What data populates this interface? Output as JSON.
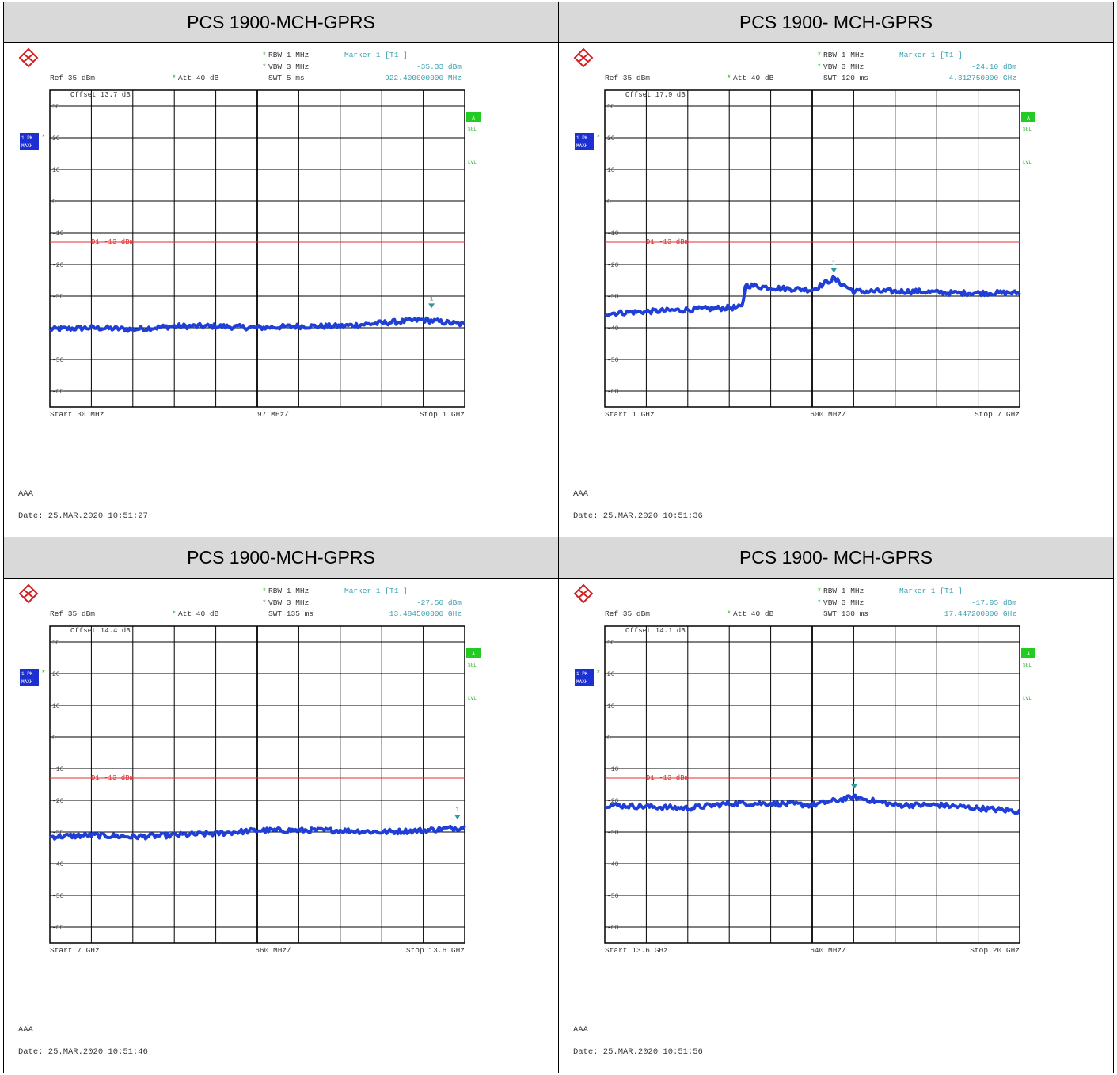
{
  "panels": [
    {
      "header": "PCS 1900-MCH-GPRS",
      "ref_label": "Ref  35 dBm",
      "att_label": "Att  40 dB",
      "rbw": "RBW 1 MHz",
      "vbw": "VBW 3 MHz",
      "swt": "SWT 5 ms",
      "marker_title": "Marker 1 [T1 ]",
      "marker_level": "-35.33 dBm",
      "marker_freq": "922.400000000 MHz",
      "offset": "Offset  13.7 dB",
      "d1_label": "D1  -13  dBm",
      "start_label": "Start 30 MHz",
      "span_label": "97 MHz/",
      "stop_label": "Stop 1 GHz",
      "comment": "AAA",
      "date": "Date: 25.MAR.2020  10:51:27",
      "trace_badge": [
        "1 PK",
        "MAXH"
      ],
      "side_badges": [
        "A",
        "SGL",
        "LVL"
      ],
      "star_marks": [
        "*",
        "*",
        "*",
        "*"
      ]
    },
    {
      "header": "PCS 1900- MCH-GPRS",
      "ref_label": "Ref  35 dBm",
      "att_label": "Att  40 dB",
      "rbw": "RBW 1 MHz",
      "vbw": "VBW 3 MHz",
      "swt": "SWT 120 ms",
      "marker_title": "Marker 1 [T1 ]",
      "marker_level": "-24.10 dBm",
      "marker_freq": "4.312750000 GHz",
      "offset": "Offset  17.9 dB",
      "d1_label": "D1  -13  dBm",
      "start_label": "Start 1 GHz",
      "span_label": "600 MHz/",
      "stop_label": "Stop 7 GHz",
      "comment": "AAA",
      "date": "Date: 25.MAR.2020  10:51:36",
      "trace_badge": [
        "1 PK",
        "MAXH"
      ],
      "side_badges": [
        "A",
        "SGL",
        "LVL"
      ],
      "star_marks": [
        "*",
        "*",
        "*",
        "*"
      ]
    },
    {
      "header": "PCS 1900-MCH-GPRS",
      "ref_label": "Ref  35 dBm",
      "att_label": "Att  40 dB",
      "rbw": "RBW 1 MHz",
      "vbw": "VBW 3 MHz",
      "swt": "SWT 135 ms",
      "marker_title": "Marker 1 [T1 ]",
      "marker_level": "-27.50 dBm",
      "marker_freq": "13.484500000 GHz",
      "offset": "Offset  14.4 dB",
      "d1_label": "D1  -13  dBm",
      "start_label": "Start 7 GHz",
      "span_label": "660 MHz/",
      "stop_label": "Stop 13.6 GHz",
      "comment": "AAA",
      "date": "Date: 25.MAR.2020  10:51:46",
      "trace_badge": [
        "1 PK",
        "MAXH"
      ],
      "side_badges": [
        "A",
        "SGL",
        "LVL"
      ],
      "star_marks": [
        "*",
        "*",
        "*",
        "*"
      ]
    },
    {
      "header": "PCS 1900- MCH-GPRS",
      "ref_label": "Ref  35 dBm",
      "att_label": "Att  40 dB",
      "rbw": "RBW 1 MHz",
      "vbw": "VBW 3 MHz",
      "swt": "SWT 130 ms",
      "marker_title": "Marker 1 [T1 ]",
      "marker_level": "-17.95 dBm",
      "marker_freq": "17.447200000 GHz",
      "offset": "Offset  14.1 dB",
      "d1_label": "D1  -13  dBm",
      "start_label": "Start 13.6 GHz",
      "span_label": "640 MHz/",
      "stop_label": "Stop 20 GHz",
      "comment": "AAA",
      "date": "Date: 25.MAR.2020  10:51:56",
      "trace_badge": [
        "1 PK",
        "MAXH"
      ],
      "side_badges": [
        "A",
        "SGL",
        "LVL"
      ],
      "star_marks": [
        "*",
        "*",
        "*",
        "*"
      ]
    }
  ],
  "colors": {
    "trace": "#1f3fd6",
    "limit_line": "#e03030",
    "marker": "#2a9a9a",
    "info_text": "#3aa0b0",
    "badge_blue": "#1c2fd1",
    "badge_green": "#22cc22",
    "grid": "#000000"
  },
  "chart_data": [
    {
      "type": "line",
      "ylim": [
        -70,
        35
      ],
      "y_ticks": [
        30,
        20,
        10,
        0,
        -10,
        -20,
        -30,
        -40,
        -50,
        -60
      ],
      "y_tick_labels": [
        "30",
        "20",
        "10",
        "0",
        "-10",
        "-20",
        "-30",
        "-40",
        "-50",
        "-60"
      ],
      "xlim": [
        30,
        1000
      ],
      "x_unit": "MHz",
      "limit_line_dbm": -13,
      "marker": {
        "x": 922.4,
        "y": -35.33,
        "label": "1"
      },
      "series": [
        {
          "x": [
            30,
            127,
            224,
            321,
            418,
            515,
            612,
            709,
            806,
            903,
            1000
          ],
          "y": [
            -40.5,
            -40.0,
            -40.5,
            -39.5,
            -39.5,
            -40.0,
            -39.5,
            -39.5,
            -38.5,
            -37.5,
            -39.0
          ]
        }
      ]
    },
    {
      "type": "line",
      "ylim": [
        -70,
        35
      ],
      "y_ticks": [
        30,
        20,
        10,
        0,
        -10,
        -20,
        -30,
        -40,
        -50,
        -60
      ],
      "y_tick_labels": [
        "30",
        "20",
        "10",
        "0",
        "-10",
        "-20",
        "-30",
        "-40",
        "-50",
        "-60"
      ],
      "xlim": [
        1,
        7
      ],
      "x_unit": "GHz",
      "limit_line_dbm": -13,
      "marker": {
        "x": 4.31275,
        "y": -24.1,
        "label": "1"
      },
      "series": [
        {
          "x": [
            1,
            1.5,
            2.0,
            2.5,
            3.0,
            3.02,
            3.5,
            4.0,
            4.31,
            4.6,
            5.0,
            5.5,
            6.0,
            6.5,
            7.0
          ],
          "y": [
            -35.5,
            -35.0,
            -34.5,
            -34.0,
            -33.5,
            -26.5,
            -27.5,
            -28.0,
            -24.5,
            -28.5,
            -28.5,
            -28.5,
            -29.0,
            -29.0,
            -29.0
          ]
        }
      ]
    },
    {
      "type": "line",
      "ylim": [
        -70,
        35
      ],
      "y_ticks": [
        30,
        20,
        10,
        0,
        -10,
        -20,
        -30,
        -40,
        -50,
        -60
      ],
      "y_tick_labels": [
        "30",
        "20",
        "10",
        "0",
        "-10",
        "-20",
        "-30",
        "-40",
        "-50",
        "-60"
      ],
      "xlim": [
        7,
        13.6
      ],
      "x_unit": "GHz",
      "limit_line_dbm": -13,
      "marker": {
        "x": 13.4845,
        "y": -27.5,
        "label": "1"
      },
      "series": [
        {
          "x": [
            7.0,
            7.66,
            8.32,
            8.98,
            9.64,
            10.3,
            10.96,
            11.62,
            12.28,
            12.94,
            13.6
          ],
          "y": [
            -31.5,
            -31.0,
            -31.5,
            -31.0,
            -30.5,
            -29.5,
            -29.5,
            -29.5,
            -30.0,
            -29.5,
            -28.5
          ]
        }
      ]
    },
    {
      "type": "line",
      "ylim": [
        -70,
        35
      ],
      "y_ticks": [
        30,
        20,
        10,
        0,
        -10,
        -20,
        -30,
        -40,
        -50,
        -60
      ],
      "y_tick_labels": [
        "30",
        "20",
        "10",
        "0",
        "-10",
        "-20",
        "-30",
        "-40",
        "-50",
        "-60"
      ],
      "xlim": [
        13.6,
        20
      ],
      "x_unit": "GHz",
      "limit_line_dbm": -13,
      "marker": {
        "x": 17.4472,
        "y": -17.95,
        "label": "1"
      },
      "series": [
        {
          "x": [
            13.6,
            14.24,
            14.88,
            15.52,
            16.16,
            16.8,
            17.44,
            18.08,
            18.72,
            19.36,
            20.0
          ],
          "y": [
            -21.5,
            -22.0,
            -22.5,
            -21.0,
            -21.0,
            -21.5,
            -19.0,
            -21.5,
            -21.5,
            -22.5,
            -23.5
          ]
        }
      ]
    }
  ]
}
